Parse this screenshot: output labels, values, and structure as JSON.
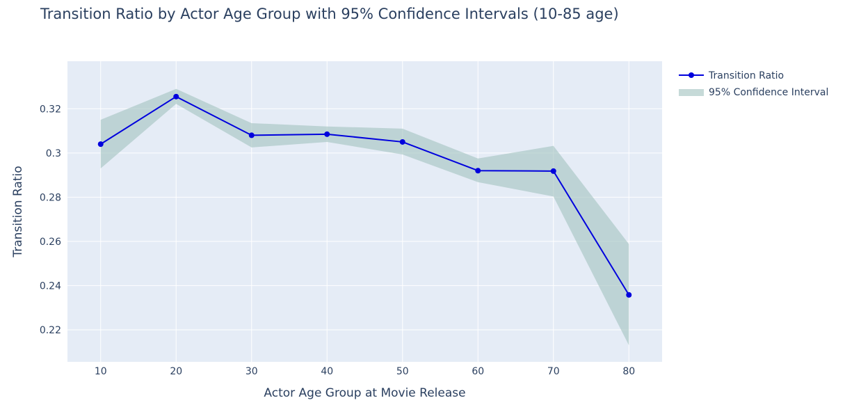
{
  "chart_data": {
    "type": "line",
    "title": "Transition Ratio by Actor Age Group with 95% Confidence Intervals (10-85 age)",
    "xlabel": "Actor Age Group at Movie Release",
    "ylabel": "Transition Ratio",
    "x": [
      10,
      20,
      30,
      40,
      50,
      60,
      70,
      80
    ],
    "xlim": [
      5.6,
      84.4
    ],
    "ylim": [
      0.2055,
      0.3415
    ],
    "x_ticks": [
      10,
      20,
      30,
      40,
      50,
      60,
      70,
      80
    ],
    "x_tick_labels": [
      "10",
      "20",
      "30",
      "40",
      "50",
      "60",
      "70",
      "80"
    ],
    "y_ticks": [
      0.22,
      0.24,
      0.26,
      0.28,
      0.3,
      0.32
    ],
    "y_tick_labels": [
      "0.22",
      "0.24",
      "0.26",
      "0.28",
      "0.3",
      "0.32"
    ],
    "grid": true,
    "legend_position": "top-right-outside",
    "series": [
      {
        "name": "Transition Ratio",
        "kind": "line+markers",
        "color": "#0000dd",
        "values": [
          0.304,
          0.3255,
          0.308,
          0.3085,
          0.305,
          0.292,
          0.2918,
          0.2358
        ]
      },
      {
        "name": "95% Confidence Interval",
        "kind": "band",
        "color": "#a7c6c3",
        "opacity": 0.65,
        "lower": [
          0.293,
          0.3222,
          0.3025,
          0.305,
          0.2993,
          0.2868,
          0.2803,
          0.213
        ],
        "upper": [
          0.315,
          0.329,
          0.3135,
          0.312,
          0.311,
          0.2975,
          0.3032,
          0.2588
        ]
      }
    ]
  },
  "theme": {
    "plot_bg": "#e5ecf6",
    "grid_color": "#ffffff",
    "text_color": "#2a3f5f"
  }
}
